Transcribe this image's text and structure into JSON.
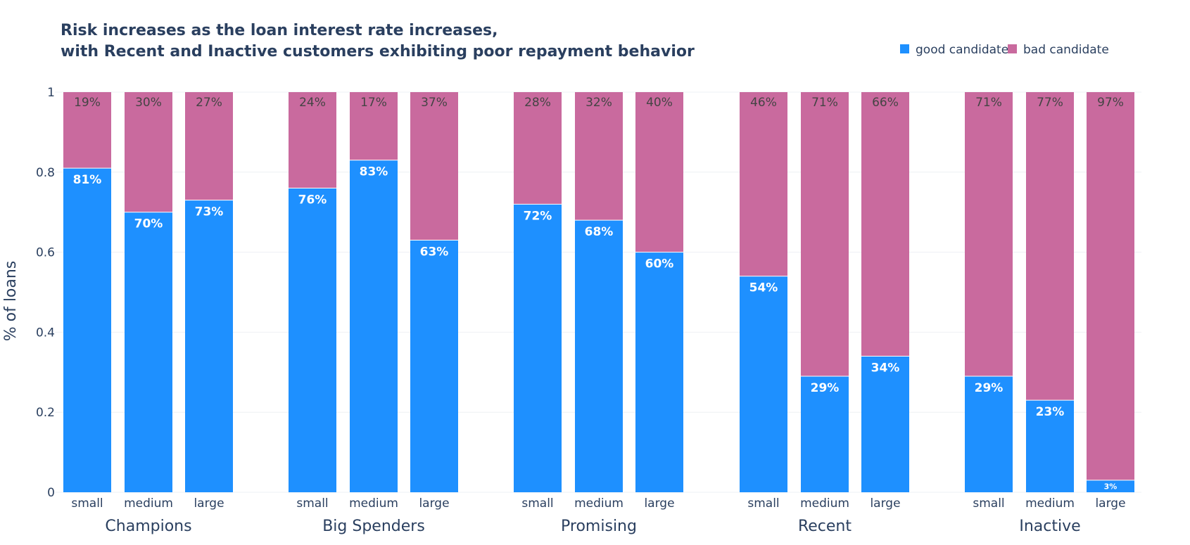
{
  "chart_data": {
    "type": "bar",
    "title": "Risk increases as the loan interest rate increases,",
    "subtitle": "with Recent and Inactive customers exhibiting poor repayment behavior",
    "ylabel": "% of loans",
    "ylim": [
      0,
      1
    ],
    "yticks": [
      "0",
      "0.2",
      "0.4",
      "0.6",
      "0.8",
      "1"
    ],
    "barmode": "stack",
    "legend_position": "top-right",
    "groups": [
      "Champions",
      "Big Spenders",
      "Promising",
      "Recent",
      "Inactive"
    ],
    "categories": [
      "small",
      "medium",
      "large"
    ],
    "series": [
      {
        "name": "good candidate",
        "color": "#1E90FF",
        "values": [
          [
            0.81,
            0.7,
            0.73
          ],
          [
            0.76,
            0.83,
            0.63
          ],
          [
            0.72,
            0.68,
            0.6
          ],
          [
            0.54,
            0.29,
            0.34
          ],
          [
            0.29,
            0.23,
            0.03
          ]
        ],
        "labels": [
          [
            "81%",
            "70%",
            "73%"
          ],
          [
            "76%",
            "83%",
            "63%"
          ],
          [
            "72%",
            "68%",
            "60%"
          ],
          [
            "54%",
            "29%",
            "34%"
          ],
          [
            "29%",
            "23%",
            "3%"
          ]
        ]
      },
      {
        "name": "bad candidate",
        "color": "#C96A9E",
        "values": [
          [
            0.19,
            0.3,
            0.27
          ],
          [
            0.24,
            0.17,
            0.37
          ],
          [
            0.28,
            0.32,
            0.4
          ],
          [
            0.46,
            0.71,
            0.66
          ],
          [
            0.71,
            0.77,
            0.97
          ]
        ],
        "labels": [
          [
            "19%",
            "30%",
            "27%"
          ],
          [
            "24%",
            "17%",
            "37%"
          ],
          [
            "28%",
            "32%",
            "40%"
          ],
          [
            "46%",
            "71%",
            "66%"
          ],
          [
            "71%",
            "77%",
            "97%"
          ]
        ]
      }
    ]
  }
}
